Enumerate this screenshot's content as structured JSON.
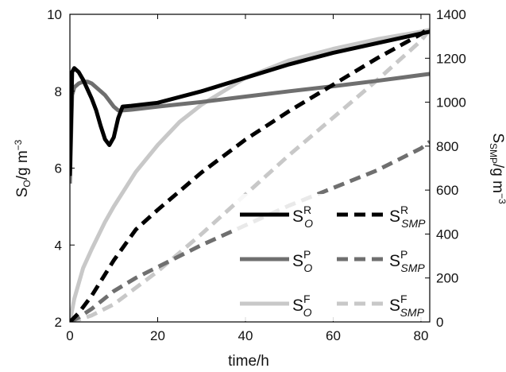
{
  "chart_data": {
    "type": "line",
    "xlabel": "time/h",
    "ylabel_left": {
      "base": "S",
      "sub": "O",
      "unit": "/g m",
      "sup": "−3"
    },
    "ylabel_right": {
      "base": "S",
      "sub": "SMP",
      "unit": "/g m",
      "sup": "−3"
    },
    "xlim": [
      0,
      82
    ],
    "ylim_left": [
      2,
      10
    ],
    "ylim_right": [
      0,
      1400
    ],
    "x_ticks": [
      "0",
      "20",
      "40",
      "60",
      "80"
    ],
    "y_ticks_left": [
      "2",
      "4",
      "6",
      "8",
      "10"
    ],
    "y_ticks_right": [
      "0",
      "200",
      "400",
      "600",
      "800",
      "1000",
      "1200",
      "1400"
    ],
    "grid": false,
    "legend_position": "lower-right",
    "series": [
      {
        "base": "S",
        "sub": "O",
        "sup": "R",
        "axis": "left",
        "color": "#000000",
        "dash": false,
        "x": [
          0,
          0.5,
          1,
          2,
          3,
          4,
          5,
          6,
          7,
          8,
          9,
          10,
          11,
          12,
          14,
          20,
          30,
          40,
          50,
          60,
          70,
          80,
          82
        ],
        "y": [
          5.8,
          8.5,
          8.6,
          8.5,
          8.3,
          8.05,
          7.8,
          7.5,
          7.1,
          6.75,
          6.6,
          6.8,
          7.3,
          7.6,
          7.62,
          7.7,
          8.0,
          8.35,
          8.7,
          9.0,
          9.25,
          9.5,
          9.55
        ]
      },
      {
        "base": "S",
        "sub": "SMP",
        "sup": "R",
        "axis": "right",
        "color": "#000000",
        "dash": true,
        "x": [
          0,
          2,
          5,
          10,
          15,
          20,
          30,
          40,
          50,
          60,
          70,
          80,
          82
        ],
        "y": [
          0,
          40,
          120,
          280,
          420,
          510,
          680,
          830,
          960,
          1080,
          1200,
          1310,
          1340
        ]
      },
      {
        "base": "S",
        "sub": "O",
        "sup": "P",
        "axis": "left",
        "color": "#6f6f6f",
        "dash": false,
        "x": [
          0,
          0.5,
          1,
          2,
          3,
          4,
          5,
          6,
          7,
          8,
          9,
          10,
          11,
          12,
          14,
          20,
          30,
          40,
          50,
          60,
          70,
          80,
          82
        ],
        "y": [
          5.6,
          7.9,
          8.1,
          8.2,
          8.25,
          8.25,
          8.2,
          8.1,
          8.0,
          7.9,
          7.75,
          7.6,
          7.5,
          7.5,
          7.52,
          7.6,
          7.72,
          7.86,
          8.0,
          8.13,
          8.27,
          8.42,
          8.45
        ]
      },
      {
        "base": "S",
        "sub": "SMP",
        "sup": "P",
        "axis": "right",
        "color": "#6f6f6f",
        "dash": true,
        "x": [
          0,
          2,
          5,
          10,
          15,
          20,
          30,
          40,
          50,
          60,
          70,
          80,
          82
        ],
        "y": [
          0,
          20,
          60,
          140,
          200,
          250,
          350,
          440,
          530,
          610,
          690,
          790,
          820
        ]
      },
      {
        "base": "S",
        "sub": "O",
        "sup": "F",
        "axis": "left",
        "color": "#c8c8c8",
        "dash": false,
        "x": [
          0,
          1,
          3,
          5,
          8,
          10,
          15,
          20,
          25,
          30,
          35,
          40,
          50,
          60,
          70,
          80,
          82
        ],
        "y": [
          2.0,
          2.6,
          3.4,
          3.9,
          4.6,
          5.0,
          5.9,
          6.6,
          7.2,
          7.65,
          8.0,
          8.35,
          8.8,
          9.1,
          9.35,
          9.55,
          9.6
        ]
      },
      {
        "base": "S",
        "sub": "SMP",
        "sup": "F",
        "axis": "right",
        "color": "#c8c8c8",
        "dash": true,
        "x": [
          0,
          2,
          5,
          10,
          20,
          30,
          40,
          50,
          60,
          70,
          80,
          82
        ],
        "y": [
          0,
          10,
          30,
          80,
          230,
          400,
          580,
          760,
          930,
          1100,
          1280,
          1330
        ]
      }
    ]
  }
}
